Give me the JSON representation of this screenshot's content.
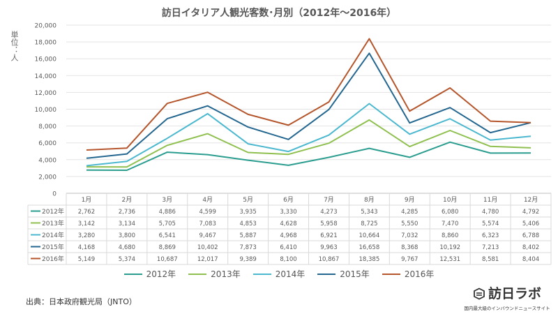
{
  "chart_data": {
    "type": "line",
    "title": "訪日イタリア人観光客数･月別（2012年～2016年）",
    "ylabel": "単位：人",
    "xlabel": "",
    "ylim": [
      0,
      20000
    ],
    "y_ticks": [
      "0",
      "2,000",
      "4,000",
      "6,000",
      "8,000",
      "10,000",
      "12,000",
      "14,000",
      "16,000",
      "18,000",
      "20,000"
    ],
    "grid": true,
    "legend_position": "bottom",
    "categories": [
      "1月",
      "2月",
      "3月",
      "4月",
      "5月",
      "6月",
      "7月",
      "8月",
      "9月",
      "10月",
      "11月",
      "12月"
    ],
    "series": [
      {
        "name": "2012年",
        "color": "#2a9d8f",
        "values": [
          2762,
          2736,
          4886,
          4599,
          3935,
          3330,
          4273,
          5343,
          4285,
          6080,
          4780,
          4792
        ],
        "labels": [
          "2,762",
          "2,736",
          "4,886",
          "4,599",
          "3,935",
          "3,330",
          "4,273",
          "5,343",
          "4,285",
          "6,080",
          "4,780",
          "4,792"
        ]
      },
      {
        "name": "2013年",
        "color": "#8fc04f",
        "values": [
          3142,
          3134,
          5705,
          7083,
          4853,
          4628,
          5958,
          8725,
          5550,
          7470,
          5574,
          5406
        ],
        "labels": [
          "3,142",
          "3,134",
          "5,705",
          "7,083",
          "4,853",
          "4,628",
          "5,958",
          "8,725",
          "5,550",
          "7,470",
          "5,574",
          "5,406"
        ]
      },
      {
        "name": "2014年",
        "color": "#4bb8cf",
        "values": [
          3280,
          3800,
          6541,
          9467,
          5887,
          4968,
          6921,
          10664,
          7032,
          8860,
          6323,
          6788
        ],
        "labels": [
          "3,280",
          "3,800",
          "6,541",
          "9,467",
          "5,887",
          "4,968",
          "6,921",
          "10,664",
          "7,032",
          "8,860",
          "6,323",
          "6,788"
        ]
      },
      {
        "name": "2015年",
        "color": "#23668f",
        "values": [
          4168,
          4680,
          8869,
          10402,
          7873,
          6410,
          9963,
          16658,
          8368,
          10192,
          7213,
          8402
        ],
        "labels": [
          "4,168",
          "4,680",
          "8,869",
          "10,402",
          "7,873",
          "6,410",
          "9,963",
          "16,658",
          "8,368",
          "10,192",
          "7,213",
          "8,402"
        ]
      },
      {
        "name": "2016年",
        "color": "#b5552b",
        "values": [
          5149,
          5374,
          10687,
          12017,
          9389,
          8100,
          10867,
          18385,
          9767,
          12531,
          8581,
          8404
        ],
        "labels": [
          "5,149",
          "5,374",
          "10,687",
          "12,017",
          "9,389",
          "8,100",
          "10,867",
          "18,385",
          "9,767",
          "12,531",
          "8,581",
          "8,404"
        ]
      }
    ]
  },
  "source_text": "出典：日本政府観光局（JNTO）",
  "brand": {
    "logo_text": "訪日ラボ",
    "tagline": "国内最大級のインバウンドニュースサイト"
  }
}
